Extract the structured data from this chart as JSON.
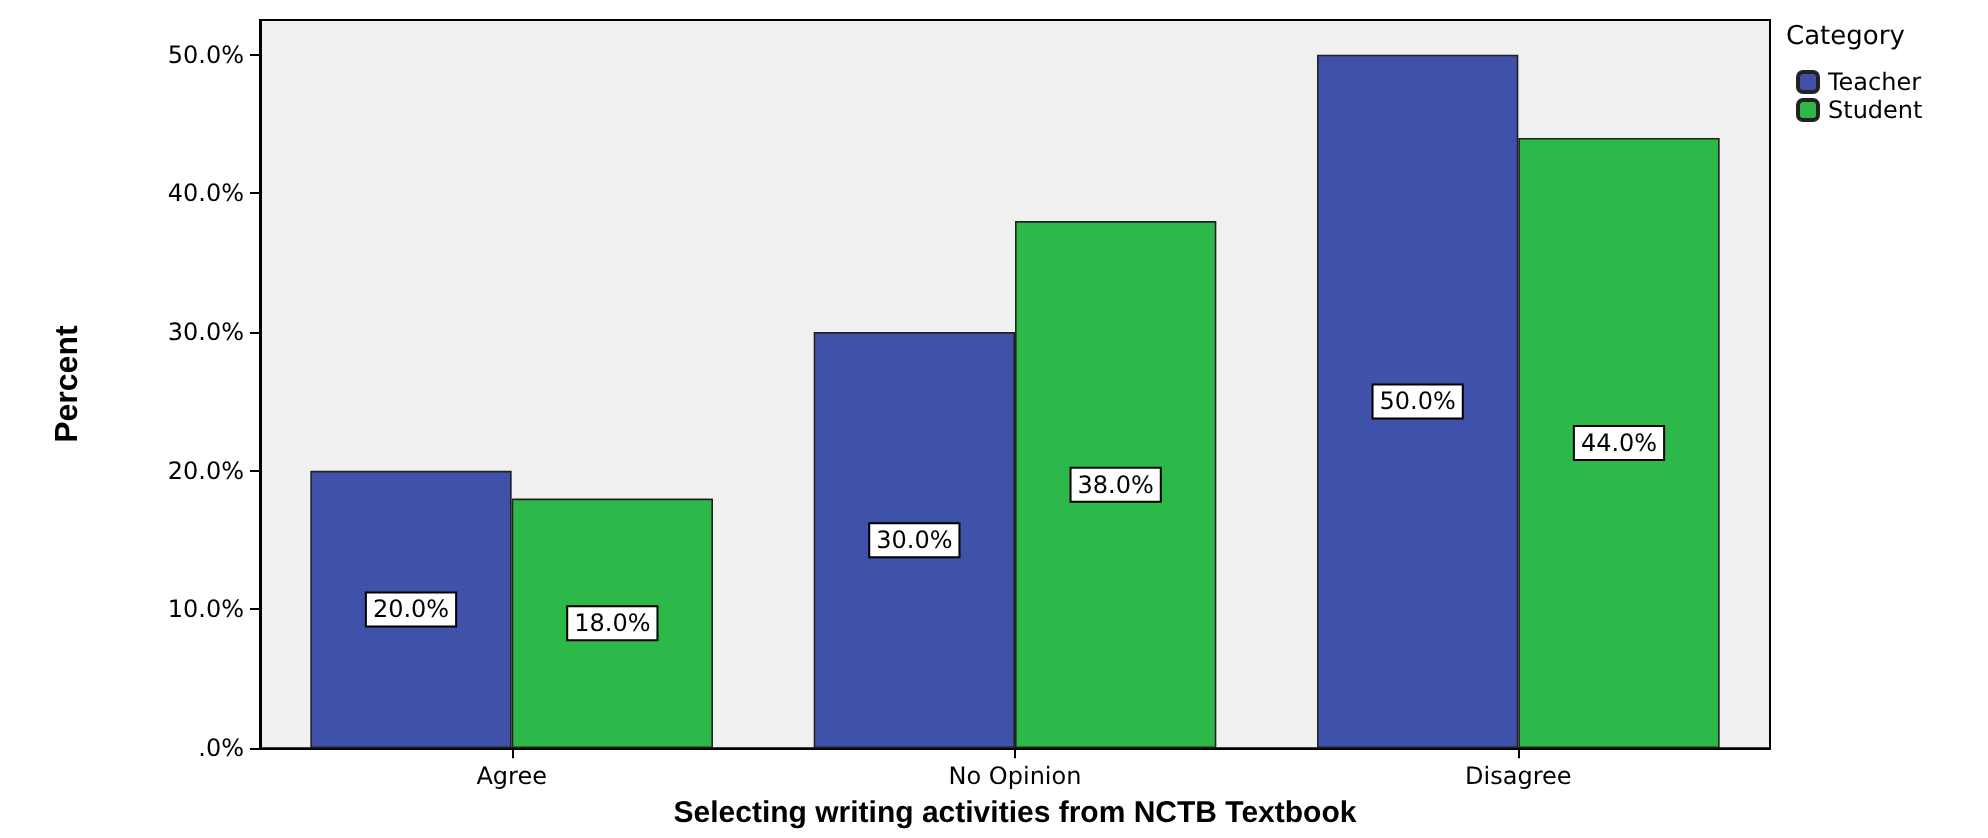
{
  "chart_data": {
    "type": "bar",
    "xlabel": "Selecting writing activities from NCTB Textbook",
    "ylabel": "Percent",
    "legend_title": "Category",
    "categories": [
      "Agree",
      "No Opinion",
      "Disagree"
    ],
    "series": [
      {
        "name": "Teacher",
        "color": "#3f51a8",
        "values": [
          20,
          30,
          50
        ],
        "value_labels": [
          "20.0%",
          "30.0%",
          "50.0%"
        ]
      },
      {
        "name": "Student",
        "color": "#2db84a",
        "values": [
          18,
          38,
          44
        ],
        "value_labels": [
          "18.0%",
          "38.0%",
          "44.0%"
        ]
      }
    ],
    "ylim": [
      0,
      52.5
    ],
    "yticks": [
      {
        "value": 0,
        "label": ".0%"
      },
      {
        "value": 10,
        "label": "10.0%"
      },
      {
        "value": 20,
        "label": "20.0%"
      },
      {
        "value": 30,
        "label": "30.0%"
      },
      {
        "value": 40,
        "label": "40.0%"
      },
      {
        "value": 50,
        "label": "50.0%"
      }
    ],
    "grid": false,
    "legend": "top right"
  }
}
